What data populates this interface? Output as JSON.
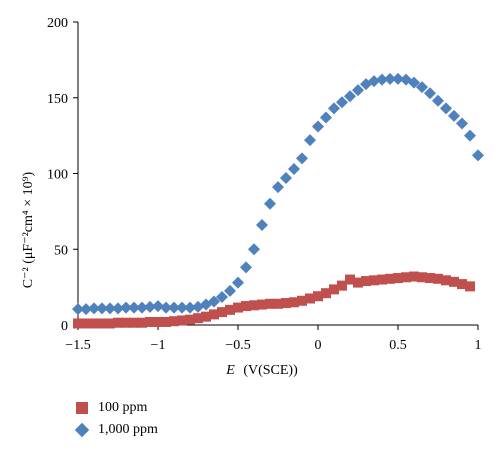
{
  "chart_data": {
    "type": "scatter",
    "xlabel_italic": "E",
    "xlabel_rest": "(V(SCE))",
    "ylabel": "C⁻² (μF⁻²cm⁴ × 10⁹)",
    "xlim": [
      -1.5,
      1.0
    ],
    "ylim": [
      0,
      200
    ],
    "x_ticks": [
      -1.5,
      -1,
      -0.5,
      0,
      0.5,
      1
    ],
    "x_tick_labels": [
      "−1.5",
      "−1",
      "−0.5",
      "0",
      "0.5",
      "1"
    ],
    "y_ticks": [
      0,
      50,
      100,
      150,
      200
    ],
    "y_tick_labels": [
      "0",
      "50",
      "100",
      "150",
      "200"
    ],
    "grid": false,
    "legend_position": "bottom-left",
    "series": [
      {
        "name": "100 ppm",
        "marker": "square",
        "color": "#c0504d",
        "x": [
          -1.5,
          -1.45,
          -1.4,
          -1.35,
          -1.3,
          -1.25,
          -1.2,
          -1.15,
          -1.1,
          -1.05,
          -1.0,
          -0.95,
          -0.9,
          -0.85,
          -0.8,
          -0.75,
          -0.7,
          -0.65,
          -0.6,
          -0.55,
          -0.5,
          -0.45,
          -0.4,
          -0.35,
          -0.3,
          -0.25,
          -0.2,
          -0.15,
          -0.1,
          -0.05,
          0.0,
          0.05,
          0.1,
          0.15,
          0.2,
          0.25,
          0.3,
          0.35,
          0.4,
          0.45,
          0.5,
          0.55,
          0.6,
          0.65,
          0.7,
          0.75,
          0.8,
          0.85,
          0.9,
          0.95
        ],
        "y": [
          1,
          1,
          1,
          1,
          1,
          1.5,
          1.5,
          1.5,
          1.5,
          2,
          2,
          2,
          2.5,
          3,
          3.5,
          4.5,
          5.5,
          7,
          8.5,
          10,
          11.5,
          12.5,
          13,
          13.5,
          14,
          14,
          14.5,
          15,
          16,
          17.5,
          19,
          21,
          23.5,
          26,
          30,
          28,
          29,
          29.5,
          30,
          30.5,
          31,
          31.5,
          32,
          31.5,
          31,
          30.5,
          29.5,
          28.5,
          27,
          25.5
        ]
      },
      {
        "name": "1,000 ppm",
        "marker": "diamond",
        "color": "#4f81bd",
        "x": [
          -1.5,
          -1.45,
          -1.4,
          -1.35,
          -1.3,
          -1.25,
          -1.2,
          -1.15,
          -1.1,
          -1.05,
          -1.0,
          -0.95,
          -0.9,
          -0.85,
          -0.8,
          -0.75,
          -0.7,
          -0.65,
          -0.6,
          -0.55,
          -0.5,
          -0.45,
          -0.4,
          -0.35,
          -0.3,
          -0.25,
          -0.2,
          -0.15,
          -0.1,
          -0.05,
          0.0,
          0.05,
          0.1,
          0.15,
          0.2,
          0.25,
          0.3,
          0.35,
          0.4,
          0.45,
          0.5,
          0.55,
          0.6,
          0.65,
          0.7,
          0.75,
          0.8,
          0.85,
          0.9,
          0.95,
          1.0
        ],
        "y": [
          10.5,
          10.5,
          11,
          11,
          11,
          11,
          11.5,
          11.5,
          11.5,
          12,
          12.5,
          11.5,
          11.5,
          11.5,
          11.5,
          12,
          13.5,
          15.5,
          18.5,
          22.5,
          28,
          38,
          50,
          66,
          80,
          91,
          97,
          103,
          110,
          122,
          131,
          137,
          143,
          147,
          151,
          155,
          159,
          161,
          162,
          162.5,
          162.5,
          162,
          160,
          157,
          153,
          148,
          143,
          138,
          133,
          125,
          112
        ]
      }
    ]
  }
}
